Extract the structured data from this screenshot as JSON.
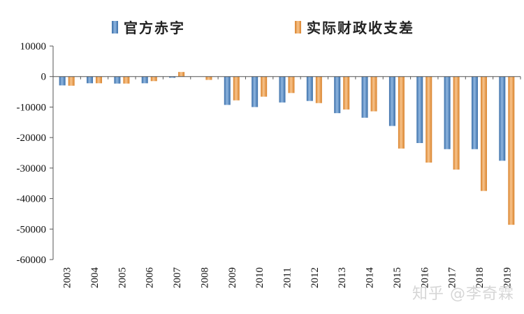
{
  "chart_data": {
    "type": "bar",
    "categories": [
      "2003",
      "2004",
      "2005",
      "2006",
      "2007",
      "2008",
      "2009",
      "2010",
      "2011",
      "2012",
      "2013",
      "2014",
      "2015",
      "2016",
      "2017",
      "2018",
      "2019"
    ],
    "series": [
      {
        "name": "官方赤字",
        "color": "#5b8fc7",
        "values": [
          -2900,
          -2200,
          -2300,
          -2200,
          -400,
          0,
          -9300,
          -10000,
          -8500,
          -8000,
          -12000,
          -13500,
          -16200,
          -21800,
          -23800,
          -23800,
          -27600
        ]
      },
      {
        "name": "实际财政收支差",
        "color": "#f0a050",
        "values": [
          -3000,
          -2200,
          -2300,
          -1500,
          1500,
          -1100,
          -7800,
          -6600,
          -5400,
          -8700,
          -10800,
          -11400,
          -23600,
          -28200,
          -30500,
          -37500,
          -48600
        ]
      }
    ],
    "ylim": [
      -60000,
      10000
    ],
    "yticks": [
      10000,
      0,
      -10000,
      -20000,
      -30000,
      -40000,
      -50000,
      -60000
    ],
    "ytick_labels": [
      "10000",
      "0",
      "-10000",
      "-20000",
      "-30000",
      "-40000",
      "-50000",
      "-60000"
    ],
    "legend_position": "top",
    "grid": false,
    "title": "",
    "xlabel": "",
    "ylabel": ""
  },
  "watermark": "知乎 @李奇霖"
}
